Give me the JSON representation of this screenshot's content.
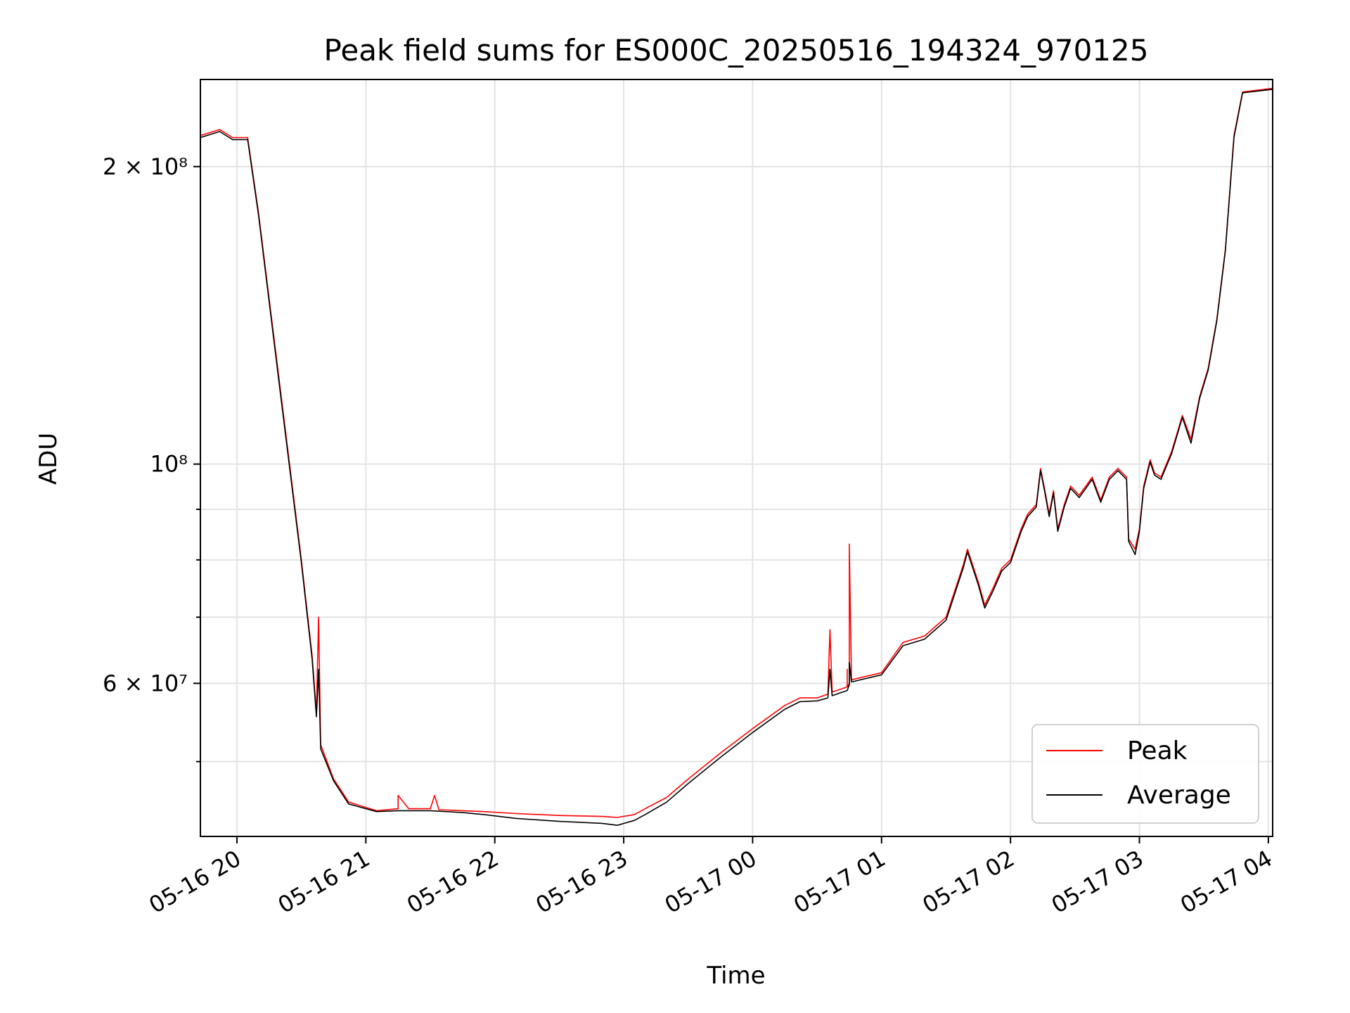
{
  "chart_data": {
    "type": "line",
    "title": "Peak field sums for ES000C_20250516_194324_970125",
    "xlabel": "Time",
    "ylabel": "ADU",
    "y_scale": "log",
    "xlim": [
      "2025-05-16 19:43",
      "2025-05-17 04:02"
    ],
    "ylim": [
      42000000,
      245000000
    ],
    "grid": true,
    "legend_position": "lower-right",
    "x_ticks": [
      {
        "value": "2025-05-16 20:00",
        "label": "05-16 20"
      },
      {
        "value": "2025-05-16 21:00",
        "label": "05-16 21"
      },
      {
        "value": "2025-05-16 22:00",
        "label": "05-16 22"
      },
      {
        "value": "2025-05-16 23:00",
        "label": "05-16 23"
      },
      {
        "value": "2025-05-17 00:00",
        "label": "05-17 00"
      },
      {
        "value": "2025-05-17 01:00",
        "label": "05-17 01"
      },
      {
        "value": "2025-05-17 02:00",
        "label": "05-17 02"
      },
      {
        "value": "2025-05-17 03:00",
        "label": "05-17 03"
      },
      {
        "value": "2025-05-17 04:00",
        "label": "05-17 04"
      }
    ],
    "y_major_ticks": [
      {
        "value": 60000000,
        "label": "6 × 10⁷"
      },
      {
        "value": 100000000,
        "label": "10⁸"
      },
      {
        "value": 200000000,
        "label": "2 × 10⁸"
      }
    ],
    "y_minor_ticks": [
      50000000,
      70000000,
      80000000,
      90000000
    ],
    "series": [
      {
        "name": "Peak",
        "color": "#ff0000",
        "points": [
          [
            "2025-05-16 19:43",
            215000000
          ],
          [
            "2025-05-16 19:52",
            218000000
          ],
          [
            "2025-05-16 19:58",
            214000000
          ],
          [
            "2025-05-16 20:05",
            214000000
          ],
          [
            "2025-05-16 20:10",
            180000000
          ],
          [
            "2025-05-16 20:20",
            120000000
          ],
          [
            "2025-05-16 20:30",
            80000000
          ],
          [
            "2025-05-16 20:35",
            64000000
          ],
          [
            "2025-05-16 20:37",
            56000000
          ],
          [
            "2025-05-16 20:38",
            70000000
          ],
          [
            "2025-05-16 20:39",
            52000000
          ],
          [
            "2025-05-16 20:45",
            48000000
          ],
          [
            "2025-05-16 20:52",
            45500000
          ],
          [
            "2025-05-16 21:05",
            44600000
          ],
          [
            "2025-05-16 21:15",
            44800000
          ],
          [
            "2025-05-16 21:15",
            46200000
          ],
          [
            "2025-05-16 21:20",
            44800000
          ],
          [
            "2025-05-16 21:30",
            44800000
          ],
          [
            "2025-05-16 21:32",
            46200000
          ],
          [
            "2025-05-16 21:34",
            44700000
          ],
          [
            "2025-05-16 21:45",
            44600000
          ],
          [
            "2025-05-16 21:55",
            44500000
          ],
          [
            "2025-05-16 22:10",
            44300000
          ],
          [
            "2025-05-16 22:30",
            44100000
          ],
          [
            "2025-05-16 22:50",
            44000000
          ],
          [
            "2025-05-16 22:57",
            43900000
          ],
          [
            "2025-05-16 23:05",
            44200000
          ],
          [
            "2025-05-16 23:10",
            44800000
          ],
          [
            "2025-05-16 23:20",
            46000000
          ],
          [
            "2025-05-16 23:30",
            48000000
          ],
          [
            "2025-05-16 23:45",
            51000000
          ],
          [
            "2025-05-17 00:00",
            54000000
          ],
          [
            "2025-05-17 00:15",
            57000000
          ],
          [
            "2025-05-17 00:22",
            58000000
          ],
          [
            "2025-05-17 00:30",
            58000000
          ],
          [
            "2025-05-17 00:35",
            58500000
          ],
          [
            "2025-05-17 00:36",
            68000000
          ],
          [
            "2025-05-17 00:37",
            58800000
          ],
          [
            "2025-05-17 00:44",
            59500000
          ],
          [
            "2025-05-17 00:44",
            62000000
          ],
          [
            "2025-05-17 00:44",
            59500000
          ],
          [
            "2025-05-17 00:45",
            60000000
          ],
          [
            "2025-05-17 00:45",
            83000000
          ],
          [
            "2025-05-17 00:46",
            60500000
          ],
          [
            "2025-05-17 01:00",
            61500000
          ],
          [
            "2025-05-17 01:10",
            66000000
          ],
          [
            "2025-05-17 01:20",
            67000000
          ],
          [
            "2025-05-17 01:30",
            70000000
          ],
          [
            "2025-05-17 01:38",
            79000000
          ],
          [
            "2025-05-17 01:40",
            82000000
          ],
          [
            "2025-05-17 01:45",
            76000000
          ],
          [
            "2025-05-17 01:48",
            72000000
          ],
          [
            "2025-05-17 01:52",
            75000000
          ],
          [
            "2025-05-17 01:56",
            78500000
          ],
          [
            "2025-05-17 02:00",
            80000000
          ],
          [
            "2025-05-17 02:05",
            86000000
          ],
          [
            "2025-05-17 02:08",
            89000000
          ],
          [
            "2025-05-17 02:12",
            91000000
          ],
          [
            "2025-05-17 02:14",
            99000000
          ],
          [
            "2025-05-17 02:16",
            94000000
          ],
          [
            "2025-05-17 02:18",
            89000000
          ],
          [
            "2025-05-17 02:20",
            94000000
          ],
          [
            "2025-05-17 02:22",
            86000000
          ],
          [
            "2025-05-17 02:25",
            91000000
          ],
          [
            "2025-05-17 02:28",
            95000000
          ],
          [
            "2025-05-17 02:32",
            93000000
          ],
          [
            "2025-05-17 02:38",
            97000000
          ],
          [
            "2025-05-17 02:42",
            92000000
          ],
          [
            "2025-05-17 02:46",
            97000000
          ],
          [
            "2025-05-17 02:50",
            99000000
          ],
          [
            "2025-05-17 02:54",
            97000000
          ],
          [
            "2025-05-17 02:55",
            84000000
          ],
          [
            "2025-05-17 02:58",
            82000000
          ],
          [
            "2025-05-17 03:00",
            86000000
          ],
          [
            "2025-05-17 03:02",
            95000000
          ],
          [
            "2025-05-17 03:05",
            101000000
          ],
          [
            "2025-05-17 03:07",
            98000000
          ],
          [
            "2025-05-17 03:10",
            97000000
          ],
          [
            "2025-05-17 03:15",
            103000000
          ],
          [
            "2025-05-17 03:20",
            112000000
          ],
          [
            "2025-05-17 03:24",
            106000000
          ],
          [
            "2025-05-17 03:28",
            117000000
          ],
          [
            "2025-05-17 03:32",
            125000000
          ],
          [
            "2025-05-17 03:36",
            140000000
          ],
          [
            "2025-05-17 03:40",
            165000000
          ],
          [
            "2025-05-17 03:44",
            215000000
          ],
          [
            "2025-05-17 03:48",
            238000000
          ],
          [
            "2025-05-17 04:02",
            240000000
          ]
        ]
      },
      {
        "name": "Average",
        "color": "#000000",
        "points": [
          [
            "2025-05-16 19:43",
            214000000
          ],
          [
            "2025-05-16 19:52",
            217000000
          ],
          [
            "2025-05-16 19:58",
            213000000
          ],
          [
            "2025-05-16 20:05",
            213000000
          ],
          [
            "2025-05-16 20:10",
            179000000
          ],
          [
            "2025-05-16 20:20",
            119000000
          ],
          [
            "2025-05-16 20:30",
            79500000
          ],
          [
            "2025-05-16 20:35",
            63500000
          ],
          [
            "2025-05-16 20:37",
            55500000
          ],
          [
            "2025-05-16 20:38",
            62000000
          ],
          [
            "2025-05-16 20:39",
            51500000
          ],
          [
            "2025-05-16 20:45",
            47800000
          ],
          [
            "2025-05-16 20:52",
            45300000
          ],
          [
            "2025-05-16 21:05",
            44500000
          ],
          [
            "2025-05-16 21:15",
            44600000
          ],
          [
            "2025-05-16 21:30",
            44600000
          ],
          [
            "2025-05-16 21:45",
            44400000
          ],
          [
            "2025-05-16 21:55",
            44200000
          ],
          [
            "2025-05-16 22:10",
            43800000
          ],
          [
            "2025-05-16 22:30",
            43500000
          ],
          [
            "2025-05-16 22:50",
            43300000
          ],
          [
            "2025-05-16 22:57",
            43100000
          ],
          [
            "2025-05-16 23:05",
            43600000
          ],
          [
            "2025-05-16 23:10",
            44200000
          ],
          [
            "2025-05-16 23:20",
            45500000
          ],
          [
            "2025-05-16 23:30",
            47500000
          ],
          [
            "2025-05-16 23:45",
            50500000
          ],
          [
            "2025-05-17 00:00",
            53500000
          ],
          [
            "2025-05-17 00:15",
            56500000
          ],
          [
            "2025-05-17 00:22",
            57500000
          ],
          [
            "2025-05-17 00:30",
            57600000
          ],
          [
            "2025-05-17 00:35",
            58000000
          ],
          [
            "2025-05-17 00:36",
            62000000
          ],
          [
            "2025-05-17 00:37",
            58300000
          ],
          [
            "2025-05-17 00:44",
            59000000
          ],
          [
            "2025-05-17 00:45",
            59800000
          ],
          [
            "2025-05-17 00:45",
            63000000
          ],
          [
            "2025-05-17 00:46",
            60200000
          ],
          [
            "2025-05-17 01:00",
            61200000
          ],
          [
            "2025-05-17 01:10",
            65500000
          ],
          [
            "2025-05-17 01:20",
            66500000
          ],
          [
            "2025-05-17 01:30",
            69500000
          ],
          [
            "2025-05-17 01:38",
            78500000
          ],
          [
            "2025-05-17 01:40",
            81500000
          ],
          [
            "2025-05-17 01:45",
            75500000
          ],
          [
            "2025-05-17 01:48",
            71500000
          ],
          [
            "2025-05-17 01:52",
            74500000
          ],
          [
            "2025-05-17 01:56",
            78000000
          ],
          [
            "2025-05-17 02:00",
            79500000
          ],
          [
            "2025-05-17 02:05",
            85500000
          ],
          [
            "2025-05-17 02:08",
            88500000
          ],
          [
            "2025-05-17 02:12",
            90500000
          ],
          [
            "2025-05-17 02:14",
            98500000
          ],
          [
            "2025-05-17 02:16",
            93500000
          ],
          [
            "2025-05-17 02:18",
            88500000
          ],
          [
            "2025-05-17 02:20",
            93500000
          ],
          [
            "2025-05-17 02:22",
            85500000
          ],
          [
            "2025-05-17 02:25",
            90500000
          ],
          [
            "2025-05-17 02:28",
            94500000
          ],
          [
            "2025-05-17 02:32",
            92500000
          ],
          [
            "2025-05-17 02:38",
            96500000
          ],
          [
            "2025-05-17 02:42",
            91500000
          ],
          [
            "2025-05-17 02:46",
            96500000
          ],
          [
            "2025-05-17 02:50",
            98500000
          ],
          [
            "2025-05-17 02:54",
            96500000
          ],
          [
            "2025-05-17 02:55",
            83500000
          ],
          [
            "2025-05-17 02:58",
            81000000
          ],
          [
            "2025-05-17 03:00",
            85500000
          ],
          [
            "2025-05-17 03:02",
            94500000
          ],
          [
            "2025-05-17 03:05",
            100500000
          ],
          [
            "2025-05-17 03:07",
            97500000
          ],
          [
            "2025-05-17 03:10",
            96500000
          ],
          [
            "2025-05-17 03:15",
            102500000
          ],
          [
            "2025-05-17 03:20",
            111500000
          ],
          [
            "2025-05-17 03:24",
            105000000
          ],
          [
            "2025-05-17 03:28",
            116500000
          ],
          [
            "2025-05-17 03:32",
            124500000
          ],
          [
            "2025-05-17 03:36",
            139500000
          ],
          [
            "2025-05-17 03:40",
            164500000
          ],
          [
            "2025-05-17 03:44",
            214000000
          ],
          [
            "2025-05-17 03:48",
            237500000
          ],
          [
            "2025-05-17 04:02",
            239500000
          ]
        ]
      }
    ]
  }
}
